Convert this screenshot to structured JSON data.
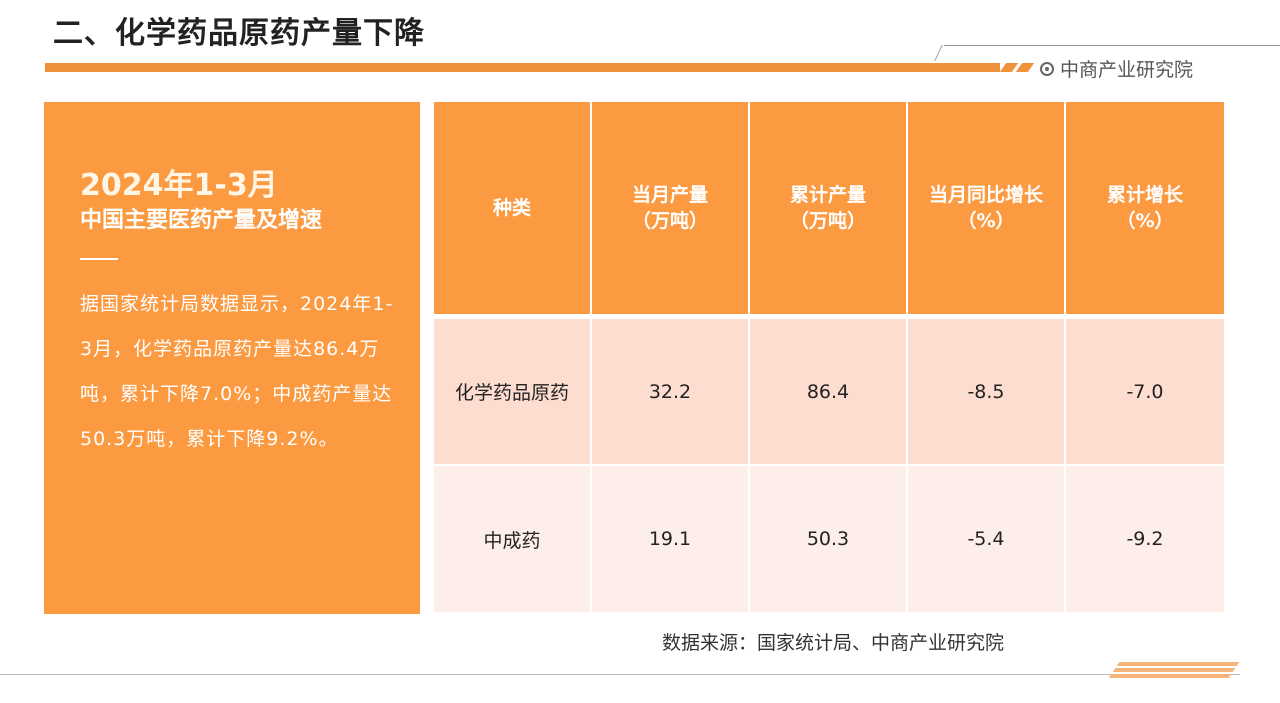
{
  "header": {
    "title": "二、化学药品原药产量下降",
    "brand": "中商产业研究院"
  },
  "left_panel": {
    "period": "2024年1-3月",
    "subtitle": "中国主要医药产量及增速",
    "body": "据国家统计局数据显示，2024年1-3月，化学药品原药产量达86.4万吨，累计下降7.0%；中成药产量达50.3万吨，累计下降9.2%。"
  },
  "table": {
    "headers": [
      {
        "line1": "种类",
        "line2": ""
      },
      {
        "line1": "当月产量",
        "line2": "（万吨）"
      },
      {
        "line1": "累计产量",
        "line2": "（万吨）"
      },
      {
        "line1": "当月同比增长",
        "line2": "（%）"
      },
      {
        "line1": "累计增长",
        "line2": "（%）"
      }
    ],
    "rows": [
      [
        "化学药品原药",
        "32.2",
        "86.4",
        "-8.5",
        "-7.0"
      ],
      [
        "中成药",
        "19.1",
        "50.3",
        "-5.4",
        "-9.2"
      ]
    ]
  },
  "source": "数据来源：国家统计局、中商产业研究院",
  "colors": {
    "accent": "#fb9a41",
    "row1": "#fdddd0",
    "row2": "#fdeee9"
  }
}
